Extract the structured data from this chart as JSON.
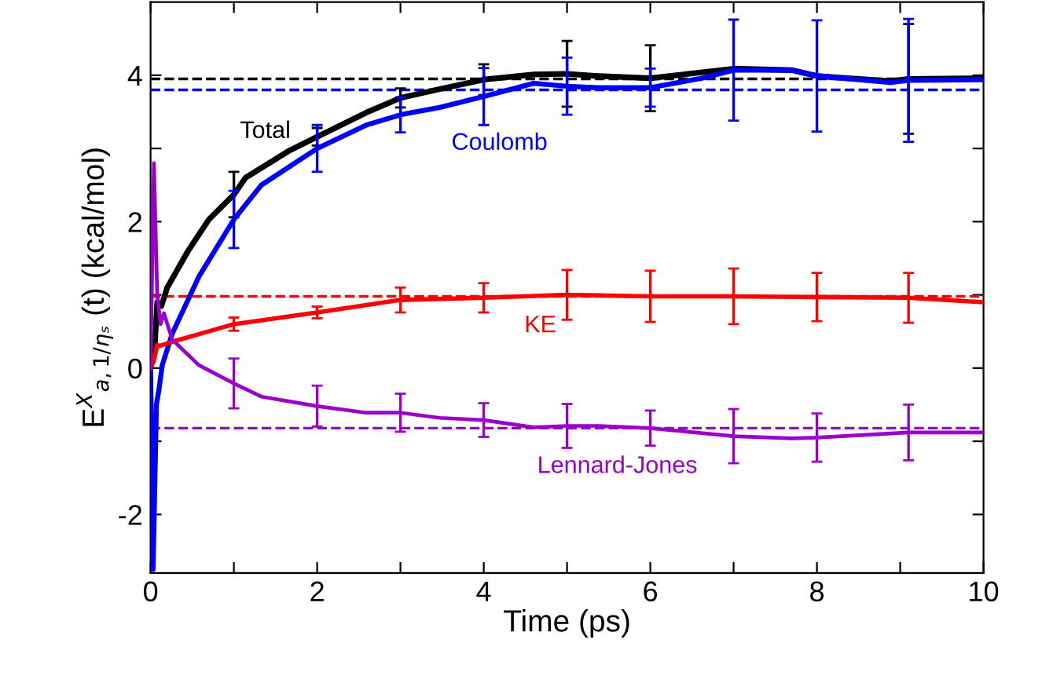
{
  "chart_data": {
    "type": "line",
    "xlabel": "Time (ps)",
    "ylabel": "E$^{X}$$_{a,1/ηₛ}$ (t) (kcal/mol)",
    "xlim": [
      0,
      10
    ],
    "ylim": [
      -2.8,
      5
    ],
    "xticks": [
      0,
      {
        "value": 1,
        "label": null
      },
      2,
      {
        "value": 3,
        "label": null
      },
      4,
      {
        "value": 5,
        "label": null
      },
      6,
      {
        "value": 7,
        "label": null
      },
      8,
      {
        "value": 9,
        "label": null
      },
      10
    ],
    "yticks": [
      -2,
      {
        "value": -1,
        "label": null
      },
      0,
      {
        "value": 1,
        "label": null
      },
      2,
      {
        "value": 3,
        "label": null
      },
      4
    ],
    "grid": false,
    "legend": false,
    "marker": "none",
    "line_style": "solid",
    "series": [
      {
        "name": "Total",
        "color": "#000000",
        "x": [
          0,
          0.05,
          0.08,
          0.13,
          0.2,
          0.45,
          0.7,
          1,
          1.14,
          1.65,
          2,
          2.59,
          3,
          3.47,
          4,
          4.6,
          5,
          5.36,
          6,
          7,
          7.7,
          8,
          8.88,
          9.1,
          10
        ],
        "values": [
          0,
          0.3,
          0.9,
          0.85,
          1.1,
          1.6,
          2.03,
          2.37,
          2.6,
          2.96,
          3.16,
          3.49,
          3.69,
          3.81,
          3.94,
          4.01,
          4.02,
          3.99,
          3.96,
          4.09,
          4.07,
          3.99,
          3.92,
          3.95,
          3.96
        ],
        "errors": [
          null,
          null,
          null,
          null,
          null,
          null,
          null,
          0.31,
          null,
          null,
          0.12,
          null,
          0.13,
          null,
          0.21,
          null,
          0.45,
          null,
          0.45,
          null,
          null,
          null,
          null,
          0.75,
          null
        ]
      },
      {
        "name": "Coulomb",
        "color": "#0000ff",
        "x": [
          0,
          0.03,
          0.07,
          0.1,
          0.14,
          0.26,
          0.58,
          1,
          1.33,
          2,
          2.59,
          3,
          3.47,
          4,
          4.6,
          5,
          5.36,
          6,
          6.62,
          7,
          7.7,
          8,
          8.88,
          9.1,
          10
        ],
        "values": [
          0,
          -2.75,
          -0.5,
          -0.3,
          0.04,
          0.47,
          1.25,
          2.03,
          2.5,
          3.0,
          3.32,
          3.46,
          3.56,
          3.71,
          3.89,
          3.85,
          3.83,
          3.83,
          3.96,
          4.07,
          4.07,
          3.99,
          3.9,
          3.93,
          3.94
        ],
        "errors": [
          null,
          null,
          null,
          null,
          null,
          null,
          null,
          0.39,
          null,
          0.32,
          null,
          0.24,
          null,
          0.39,
          null,
          0.39,
          null,
          0.26,
          null,
          0.69,
          null,
          0.76,
          null,
          0.84,
          null
        ]
      },
      {
        "name": "KE",
        "color": "#ff0000",
        "x": [
          0,
          0.04,
          0.08,
          0.1,
          0.26,
          1,
          2,
          3,
          4,
          5,
          6,
          7,
          8,
          9.1,
          10
        ],
        "values": [
          0,
          0.1,
          0.32,
          0.3,
          0.36,
          0.6,
          0.76,
          0.93,
          0.96,
          1.0,
          0.98,
          0.98,
          0.97,
          0.96,
          0.9
        ],
        "errors": [
          null,
          null,
          null,
          null,
          null,
          0.09,
          0.08,
          0.17,
          0.2,
          0.34,
          0.35,
          0.38,
          0.33,
          0.34,
          null
        ]
      },
      {
        "name": "Lennard-Jones",
        "color": "#9900cc",
        "x": [
          0,
          0.04,
          0.08,
          0.12,
          0.16,
          0.26,
          0.58,
          1,
          1.33,
          2,
          2.59,
          3,
          3.47,
          4,
          4.6,
          5,
          5.36,
          6,
          7,
          7.7,
          8,
          9.1,
          10
        ],
        "values": [
          0,
          2.8,
          1.0,
          0.6,
          0.75,
          0.39,
          0.04,
          -0.21,
          -0.39,
          -0.52,
          -0.61,
          -0.61,
          -0.68,
          -0.71,
          -0.81,
          -0.79,
          -0.79,
          -0.82,
          -0.93,
          -0.96,
          -0.95,
          -0.88,
          -0.88
        ],
        "errors": [
          null,
          null,
          null,
          null,
          null,
          null,
          null,
          0.34,
          null,
          0.28,
          null,
          0.26,
          null,
          0.23,
          null,
          0.3,
          null,
          0.24,
          0.37,
          null,
          0.33,
          0.38,
          null
        ]
      }
    ],
    "ref_lines": [
      {
        "axis": "y",
        "value": 3.95,
        "color": "#000000",
        "line_style": "dashed"
      },
      {
        "axis": "y",
        "value": 3.8,
        "color": "#0000ff",
        "line_style": "dashed"
      },
      {
        "axis": "y",
        "value": 0.98,
        "color": "#ff0000",
        "line_style": "dashed"
      },
      {
        "axis": "y",
        "value": -0.82,
        "color": "#9900cc",
        "line_style": "dashed"
      }
    ]
  }
}
